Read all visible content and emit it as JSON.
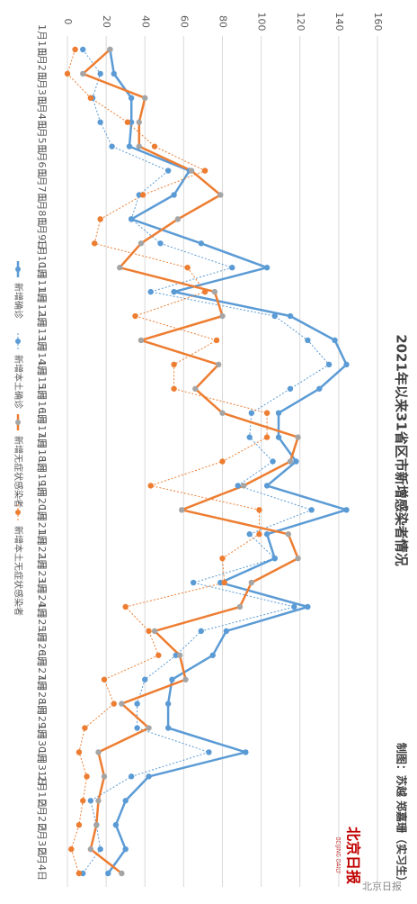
{
  "chart_data": {
    "type": "line",
    "title": "2021年以来31省区市新增感染者情况",
    "credit": "制图：苏越 郑嘉珊（实习生）",
    "logo": "北京日报",
    "logo_sub": "BEIJING DAILY",
    "watermark": "北京日报",
    "categories": [
      "1月1日",
      "1月2日",
      "1月3日",
      "1月4日",
      "1月5日",
      "1月6日",
      "1月7日",
      "1月8日",
      "1月9日",
      "1月10日",
      "1月11日",
      "1月12日",
      "1月13日",
      "1月14日",
      "1月15日",
      "1月16日",
      "1月17日",
      "1月18日",
      "1月19日",
      "1月20日",
      "1月21日",
      "1月22日",
      "1月23日",
      "1月24日",
      "1月25日",
      "1月26日",
      "1月27日",
      "1月28日",
      "1月29日",
      "1月30日",
      "1月31日",
      "2月1日",
      "2月2日",
      "2月3日",
      "2月4日"
    ],
    "ylim": [
      0,
      160
    ],
    "yticks": [
      0,
      20,
      40,
      60,
      80,
      100,
      120,
      140,
      160
    ],
    "grid": true,
    "legend": "left",
    "series": [
      {
        "name": "新增确诊",
        "color": "#5b9bd5",
        "marker_color": "#5b9bd5",
        "dashed": false,
        "values": [
          22,
          24,
          33,
          33,
          32,
          63,
          55,
          33,
          69,
          103,
          55,
          115,
          138,
          144,
          130,
          109,
          109,
          118,
          103,
          144,
          103,
          107,
          79,
          124,
          82,
          75,
          54,
          52,
          52,
          92,
          42,
          30,
          25,
          30,
          21
        ]
      },
      {
        "name": "新增本土确诊",
        "color": "#5b9bd5",
        "marker_color": "#5b9bd5",
        "dashed": true,
        "values": [
          8,
          17,
          13,
          17,
          23,
          52,
          37,
          33,
          48,
          85,
          43,
          107,
          124,
          135,
          115,
          95,
          94,
          106,
          88,
          126,
          94,
          107,
          65,
          117,
          69,
          56,
          40,
          36,
          36,
          73,
          33,
          12,
          15,
          17,
          8
        ]
      },
      {
        "name": "新增无症状感染者",
        "color": "#ed7d31",
        "marker_color": "#a5a5a5",
        "dashed": false,
        "values": [
          22,
          8,
          40,
          37,
          37,
          64,
          79,
          57,
          38,
          27,
          76,
          80,
          38,
          78,
          66,
          80,
          119,
          115,
          91,
          59,
          114,
          119,
          95,
          89,
          45,
          58,
          61,
          28,
          42,
          16,
          19,
          16,
          15,
          12,
          28
        ]
      },
      {
        "name": "新增本土无症状感染者",
        "color": "#ed7d31",
        "marker_color": "#ed7d31",
        "dashed": true,
        "values": [
          4,
          0,
          12,
          31,
          45,
          71,
          39,
          17,
          14,
          62,
          71,
          35,
          77,
          55,
          55,
          103,
          103,
          80,
          43,
          99,
          99,
          80,
          81,
          30,
          42,
          47,
          19,
          24,
          9,
          6,
          10,
          8,
          6,
          2,
          6
        ]
      }
    ]
  }
}
